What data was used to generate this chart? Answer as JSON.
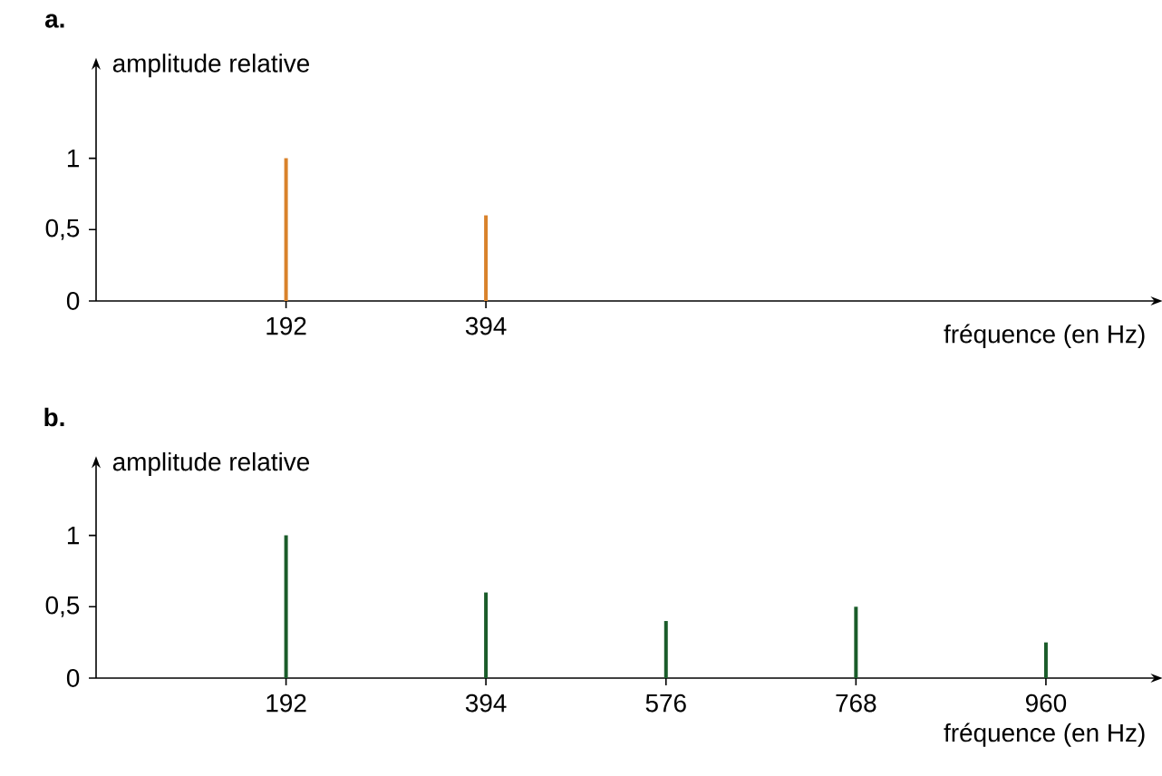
{
  "chart_data": [
    {
      "type": "bar",
      "title": "a.",
      "xlabel": "fréquence (en Hz)",
      "ylabel": "amplitude relative",
      "x": [
        192,
        394
      ],
      "values": [
        1,
        0.6
      ],
      "color": "#d9822b",
      "xlim": [
        0,
        1070
      ],
      "ylim": [
        0,
        1.65
      ],
      "xticks": [
        192,
        394
      ],
      "yticks": [
        0,
        {
          "value": 0.5,
          "label": "0,5"
        },
        1
      ]
    },
    {
      "type": "bar",
      "title": "b.",
      "xlabel": "fréquence (en Hz)",
      "ylabel": "amplitude relative",
      "x": [
        192,
        394,
        576,
        768,
        960
      ],
      "values": [
        1,
        0.6,
        0.4,
        0.5,
        0.25
      ],
      "color": "#1a5c2a",
      "xlim": [
        0,
        1070
      ],
      "ylim": [
        0,
        1.5
      ],
      "xticks": [
        192,
        394,
        576,
        768,
        960
      ],
      "yticks": [
        0,
        {
          "value": 0.5,
          "label": "0,5"
        },
        1
      ]
    }
  ]
}
